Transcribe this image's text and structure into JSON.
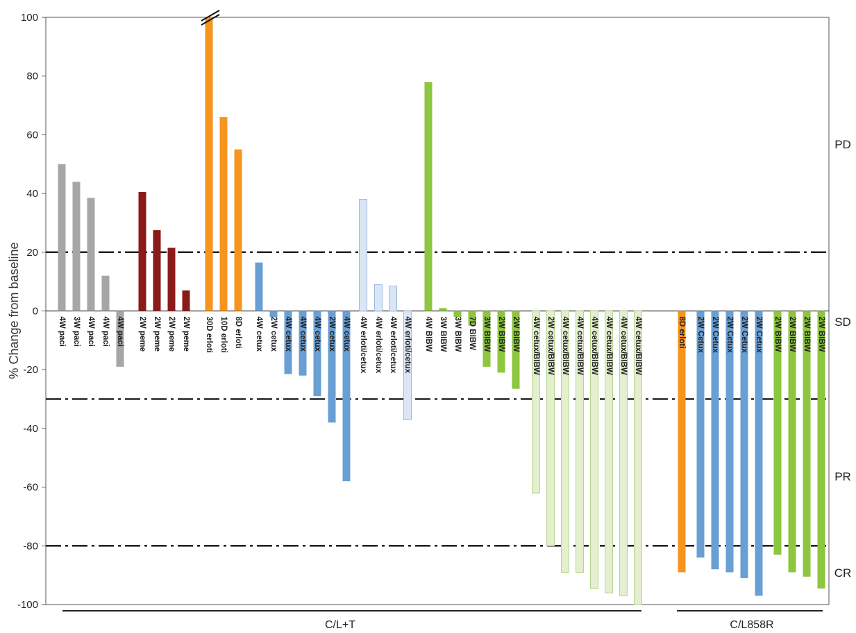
{
  "chart_data": {
    "type": "bar",
    "ylabel": "% Change from baseline",
    "ylim": [
      -100,
      100
    ],
    "yticks": [
      100,
      80,
      60,
      40,
      20,
      0,
      -20,
      -40,
      -60,
      -80,
      -100
    ],
    "ytick_labels": [
      "100",
      "80",
      "60",
      "40",
      "20",
      "0",
      "-20",
      "-40",
      "-60",
      "-80",
      "-100"
    ],
    "reference_lines": [
      20,
      -30,
      -80
    ],
    "response_zones": [
      "PD",
      "SD",
      "PR",
      "CR"
    ],
    "groups": [
      "C/L+T",
      "C/L858R"
    ],
    "colors": {
      "paclitaxel": "#a6a6a8",
      "pemetrexed": "#8b1a1a",
      "erlotinib": "#f7941d",
      "cetuximab": "#6a9fd4",
      "erlotinib_cetuximab": "#dbe6f5",
      "bibw": "#8dc63f",
      "cetuximab_bibw": "#e3efcf"
    },
    "bars": [
      {
        "label": "4W paci",
        "value": 50,
        "color": "paclitaxel"
      },
      {
        "label": "3W paci",
        "value": 44,
        "color": "paclitaxel"
      },
      {
        "label": "4W paci",
        "value": 38.5,
        "color": "paclitaxel"
      },
      {
        "label": "4W paci",
        "value": 12,
        "color": "paclitaxel"
      },
      {
        "label": "4W paci",
        "value": -19,
        "color": "paclitaxel"
      },
      {
        "label": "2W peme",
        "value": 40.5,
        "color": "pemetrexed"
      },
      {
        "label": "2W peme",
        "value": 27.5,
        "color": "pemetrexed"
      },
      {
        "label": "2W peme",
        "value": 21.5,
        "color": "pemetrexed"
      },
      {
        "label": "2W peme",
        "value": 7,
        "color": "pemetrexed"
      },
      {
        "label": "30D erloti",
        "value": 100,
        "color": "erlotinib",
        "axis_break": true
      },
      {
        "label": "10D erloti",
        "value": 66,
        "color": "erlotinib"
      },
      {
        "label": "8D erloti",
        "value": 55,
        "color": "erlotinib"
      },
      {
        "label": "4W cetux",
        "value": 16.5,
        "color": "cetuximab"
      },
      {
        "label": "2W cetux",
        "value": -2,
        "color": "cetuximab"
      },
      {
        "label": "4W cetux",
        "value": -21.5,
        "color": "cetuximab"
      },
      {
        "label": "4W cetux",
        "value": -22,
        "color": "cetuximab"
      },
      {
        "label": "4W cetux",
        "value": -29,
        "color": "cetuximab"
      },
      {
        "label": "2W cetux",
        "value": -38,
        "color": "cetuximab"
      },
      {
        "label": "4W cetux",
        "value": -58,
        "color": "cetuximab"
      },
      {
        "label": "4W erloti/cetux",
        "value": 38,
        "color": "erlotinib_cetuximab"
      },
      {
        "label": "4W erloti/cetux",
        "value": 9,
        "color": "erlotinib_cetuximab"
      },
      {
        "label": "4W erloti/cetux",
        "value": 8.5,
        "color": "erlotinib_cetuximab"
      },
      {
        "label": "4W erloti/cetux",
        "value": -37,
        "color": "erlotinib_cetuximab"
      },
      {
        "label": "4W BIBW",
        "value": 78,
        "color": "bibw"
      },
      {
        "label": "3W BIBW",
        "value": 1,
        "color": "bibw"
      },
      {
        "label": "3W BIBW",
        "value": -2,
        "color": "bibw"
      },
      {
        "label": "7D BIBW",
        "value": -5,
        "color": "bibw"
      },
      {
        "label": "3W BIBW",
        "value": -19,
        "color": "bibw"
      },
      {
        "label": "2W BIBW",
        "value": -21,
        "color": "bibw"
      },
      {
        "label": "2W BIBW",
        "value": -26.5,
        "color": "bibw"
      },
      {
        "label": "4W cetux/BIBW",
        "value": -62,
        "color": "cetuximab_bibw"
      },
      {
        "label": "2W cetux/BIBW",
        "value": -80,
        "color": "cetuximab_bibw"
      },
      {
        "label": "4W cetux/BIBW",
        "value": -89,
        "color": "cetuximab_bibw"
      },
      {
        "label": "4W cetux/BIBW",
        "value": -89,
        "color": "cetuximab_bibw"
      },
      {
        "label": "4W cetux/BIBW",
        "value": -94.5,
        "color": "cetuximab_bibw"
      },
      {
        "label": "4W cetux/BIBW",
        "value": -96,
        "color": "cetuximab_bibw"
      },
      {
        "label": "4W cetux/BIBW",
        "value": -97,
        "color": "cetuximab_bibw"
      },
      {
        "label": "4W cetux/BIBW",
        "value": -100,
        "color": "cetuximab_bibw"
      },
      {
        "label": "8D erloti",
        "value": -89,
        "color": "erlotinib"
      },
      {
        "label": "2W Cetux",
        "value": -84,
        "color": "cetuximab"
      },
      {
        "label": "2W Cetux",
        "value": -88,
        "color": "cetuximab"
      },
      {
        "label": "2W Cetux",
        "value": -89,
        "color": "cetuximab"
      },
      {
        "label": "2W Cetux",
        "value": -91,
        "color": "cetuximab"
      },
      {
        "label": "2W Cetux",
        "value": -97,
        "color": "cetuximab"
      },
      {
        "label": "2W BIBW",
        "value": -83,
        "color": "bibw"
      },
      {
        "label": "2W BIBW",
        "value": -89,
        "color": "bibw"
      },
      {
        "label": "2W BIBW",
        "value": -90.5,
        "color": "bibw"
      },
      {
        "label": "2W BIBW",
        "value": -94.5,
        "color": "bibw"
      }
    ]
  }
}
